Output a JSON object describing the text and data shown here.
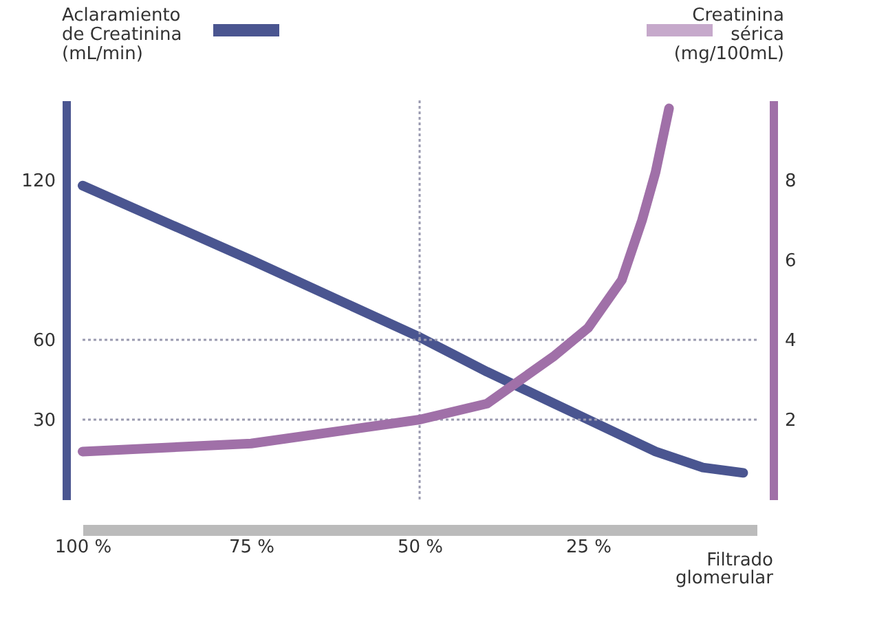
{
  "chart_data": {
    "type": "line",
    "xlabel": "Filtrado glomerular",
    "x": [
      100,
      75,
      50,
      40,
      30,
      25,
      15,
      8,
      2
    ],
    "series": [
      {
        "name": "Aclaramiento de Creatinina (mL/min)",
        "color": "#4a5590",
        "values": [
          118,
          90,
          61,
          48,
          36,
          30,
          18,
          12,
          10
        ]
      },
      {
        "name": "Creatinina sérica (mg/100mL)",
        "color": "#a070a8",
        "axis": "y2",
        "x": [
          100,
          75,
          50,
          40,
          35,
          30,
          25,
          20,
          17,
          15,
          13
        ],
        "values": [
          1.2,
          1.4,
          2.0,
          2.4,
          3.0,
          3.6,
          4.3,
          5.5,
          7.0,
          8.2,
          9.8
        ]
      }
    ],
    "xlim": [
      100,
      0
    ],
    "xticks": [
      {
        "value": 100,
        "label": "100 %"
      },
      {
        "value": 75,
        "label": "75 %"
      },
      {
        "value": 50,
        "label": "50 %"
      },
      {
        "value": 25,
        "label": "25 %"
      }
    ],
    "ylim": [
      0,
      150
    ],
    "yticks": [
      30,
      60,
      120
    ],
    "y2lim": [
      0,
      10
    ],
    "y2ticks": [
      2,
      4,
      6,
      8
    ],
    "ref_lines": [
      {
        "axis": "y",
        "value": 60,
        "color": "#9a9ab0",
        "line_style": "dotted"
      },
      {
        "axis": "y",
        "value": 30,
        "color": "#9a9ab0",
        "line_style": "dotted"
      },
      {
        "axis": "x",
        "value": 50,
        "color": "#9a9ab0",
        "line_style": "dotted"
      }
    ],
    "legend": "top",
    "grid": false,
    "line_style": "solid"
  }
}
